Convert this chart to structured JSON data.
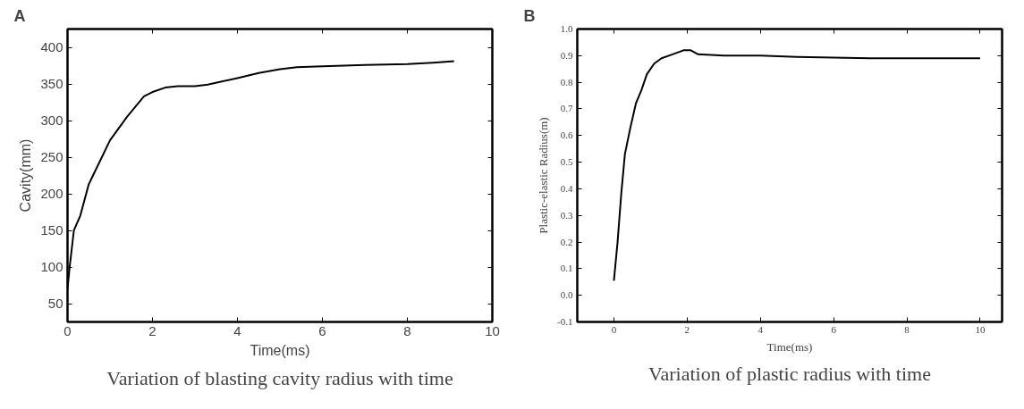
{
  "chart_data": [
    {
      "type": "line",
      "xlabel": "Time(ms)",
      "ylabel": "Cavity(mm)",
      "annotations": [
        "A",
        "Variation of blasting cavity radius with time"
      ],
      "x": [
        0,
        0.05,
        0.15,
        0.3,
        0.5,
        0.6,
        1.0,
        1.4,
        1.8,
        2.0,
        2.3,
        2.6,
        3.0,
        3.3,
        4.0,
        4.5,
        5.0,
        5.4,
        6.0,
        7.0,
        8.0,
        8.6,
        9.1
      ],
      "series": [
        {
          "color": "#000000",
          "values": [
            70,
            100,
            150,
            170,
            213,
            225,
            273,
            305,
            333,
            339,
            345,
            347,
            347,
            349,
            358,
            365,
            370,
            373,
            374,
            376,
            377,
            379,
            381
          ]
        }
      ],
      "xlim": [
        0,
        10
      ],
      "xticks": [
        0,
        2,
        4,
        6,
        8,
        10
      ],
      "ylim": [
        25,
        425
      ],
      "yticks": [
        50,
        100,
        150,
        200,
        250,
        300,
        350,
        400
      ],
      "grid": false
    },
    {
      "type": "line",
      "xlabel": "Time(ms)",
      "ylabel": "Plastic-elastic Radius(m)",
      "annotations": [
        "B",
        "Variation of plastic radius with time"
      ],
      "x": [
        0,
        0.1,
        0.2,
        0.3,
        0.45,
        0.6,
        0.75,
        0.9,
        1.1,
        1.3,
        1.6,
        1.9,
        2.1,
        2.3,
        3,
        4,
        5,
        6,
        7,
        8,
        9,
        10
      ],
      "series": [
        {
          "color": "#000000",
          "values": [
            0.055,
            0.2,
            0.38,
            0.53,
            0.63,
            0.72,
            0.77,
            0.83,
            0.87,
            0.89,
            0.905,
            0.92,
            0.92,
            0.905,
            0.9,
            0.9,
            0.895,
            0.893,
            0.89,
            0.89,
            0.89,
            0.89
          ]
        }
      ],
      "xlim": [
        -1,
        10.6
      ],
      "xticks": [
        0,
        2,
        4,
        6,
        8,
        10
      ],
      "ylim": [
        -0.1,
        1.0
      ],
      "yticks": [
        -0.1,
        {
          "value": 0,
          "label": "0.0"
        },
        0.1,
        0.2,
        0.3,
        0.4,
        0.5,
        0.6,
        0.7,
        0.8,
        0.9,
        {
          "value": 1,
          "label": "1.0"
        }
      ],
      "grid": false
    }
  ]
}
